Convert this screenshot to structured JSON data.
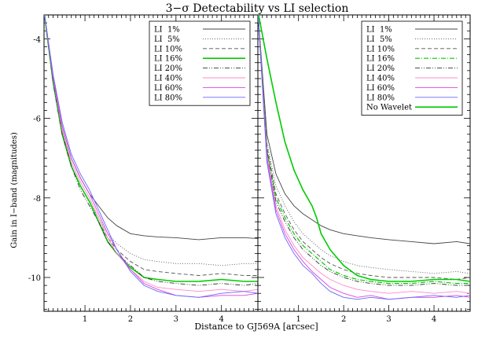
{
  "chart_data": {
    "type": "line",
    "title": "3−σ Detectability vs LI selection",
    "xlabel": "Distance to GJ569A [arcsec]",
    "ylabel": "Gain in I−band (magnitudes)",
    "xlim": [
      0.1,
      4.8
    ],
    "ylim": [
      -3.4,
      -10.85
    ],
    "x_ticks": [
      1,
      2,
      3,
      4
    ],
    "y_ticks": [
      -4,
      -6,
      -8,
      -10
    ],
    "grid": false,
    "legend_position": "top-right",
    "panels": [
      {
        "name": "left",
        "series": [
          {
            "name": "LI  1%",
            "color": "#444444",
            "dash": "",
            "width": 0.9,
            "x": [
              0.1,
              0.3,
              0.5,
              0.7,
              0.9,
              1.1,
              1.3,
              1.5,
              1.7,
              2.0,
              2.3,
              2.6,
              3.0,
              3.5,
              4.0,
              4.5,
              4.8
            ],
            "y": [
              -3.3,
              -5.0,
              -6.2,
              -7.0,
              -7.5,
              -7.9,
              -8.2,
              -8.5,
              -8.7,
              -8.9,
              -8.95,
              -8.98,
              -9.0,
              -9.05,
              -9.0,
              -9.0,
              -9.02
            ]
          },
          {
            "name": "LI  5%",
            "color": "#555555",
            "dash": "1,2",
            "width": 0.9,
            "x": [
              0.1,
              0.3,
              0.5,
              0.7,
              0.9,
              1.1,
              1.3,
              1.5,
              1.7,
              2.0,
              2.3,
              2.6,
              3.0,
              3.5,
              4.0,
              4.5,
              4.8
            ],
            "y": [
              -3.3,
              -5.1,
              -6.3,
              -7.2,
              -7.7,
              -8.1,
              -8.5,
              -8.9,
              -9.15,
              -9.4,
              -9.55,
              -9.6,
              -9.65,
              -9.65,
              -9.7,
              -9.65,
              -9.65
            ]
          },
          {
            "name": "LI 10%",
            "color": "#555555",
            "dash": "5,3",
            "width": 0.9,
            "x": [
              0.1,
              0.3,
              0.5,
              0.7,
              0.9,
              1.1,
              1.3,
              1.5,
              1.7,
              2.0,
              2.3,
              2.6,
              3.0,
              3.5,
              4.0,
              4.5,
              4.8
            ],
            "y": [
              -3.3,
              -5.1,
              -6.3,
              -7.2,
              -7.7,
              -8.1,
              -8.6,
              -9.0,
              -9.3,
              -9.6,
              -9.8,
              -9.85,
              -9.9,
              -9.95,
              -9.9,
              -9.95,
              -9.95
            ]
          },
          {
            "name": "LI 16%",
            "color": "#00cc00",
            "dash": "",
            "width": 1.6,
            "x": [
              0.1,
              0.3,
              0.5,
              0.7,
              0.9,
              1.1,
              1.3,
              1.5,
              1.7,
              2.0,
              2.3,
              2.6,
              3.0,
              3.5,
              4.0,
              4.5,
              4.8
            ],
            "y": [
              -3.3,
              -5.1,
              -6.4,
              -7.2,
              -7.7,
              -8.1,
              -8.6,
              -9.1,
              -9.4,
              -9.75,
              -10.0,
              -10.05,
              -10.1,
              -10.1,
              -10.05,
              -10.1,
              -10.1
            ]
          },
          {
            "name": "LI 20%",
            "color": "#333333",
            "dash": "6,2,1,2,1,2",
            "width": 0.9,
            "x": [
              0.1,
              0.3,
              0.5,
              0.7,
              0.9,
              1.1,
              1.3,
              1.5,
              1.7,
              2.0,
              2.3,
              2.6,
              3.0,
              3.5,
              4.0,
              4.5,
              4.8
            ],
            "y": [
              -3.3,
              -5.1,
              -6.4,
              -7.2,
              -7.8,
              -8.2,
              -8.6,
              -9.1,
              -9.4,
              -9.7,
              -10.0,
              -10.1,
              -10.15,
              -10.2,
              -10.15,
              -10.2,
              -10.15
            ]
          },
          {
            "name": "LI 40%",
            "color": "#ff88cc",
            "dash": "",
            "width": 0.9,
            "x": [
              0.1,
              0.3,
              0.5,
              0.7,
              0.9,
              1.1,
              1.3,
              1.5,
              1.7,
              2.0,
              2.3,
              2.6,
              3.0,
              3.5,
              4.0,
              4.5,
              4.8
            ],
            "y": [
              -3.3,
              -5.0,
              -6.3,
              -7.1,
              -7.6,
              -8.0,
              -8.5,
              -9.0,
              -9.4,
              -9.8,
              -10.1,
              -10.25,
              -10.3,
              -10.35,
              -10.3,
              -10.35,
              -10.3
            ]
          },
          {
            "name": "LI 60%",
            "color": "#dd44dd",
            "dash": "",
            "width": 0.9,
            "x": [
              0.1,
              0.3,
              0.5,
              0.7,
              0.9,
              1.1,
              1.3,
              1.5,
              1.7,
              2.0,
              2.3,
              2.6,
              3.0,
              3.5,
              4.0,
              4.5,
              4.8
            ],
            "y": [
              -3.3,
              -5.0,
              -6.2,
              -7.0,
              -7.5,
              -7.9,
              -8.4,
              -8.9,
              -9.3,
              -9.8,
              -10.15,
              -10.3,
              -10.45,
              -10.5,
              -10.45,
              -10.45,
              -10.4
            ]
          },
          {
            "name": "LI 80%",
            "color": "#6666ff",
            "dash": "",
            "width": 0.9,
            "x": [
              0.1,
              0.3,
              0.5,
              0.7,
              0.9,
              1.1,
              1.3,
              1.5,
              1.7,
              2.0,
              2.3,
              2.6,
              3.0,
              3.5,
              4.0,
              4.5,
              4.8
            ],
            "y": [
              -3.3,
              -4.9,
              -6.1,
              -6.9,
              -7.4,
              -7.8,
              -8.3,
              -8.8,
              -9.3,
              -9.85,
              -10.2,
              -10.35,
              -10.45,
              -10.5,
              -10.4,
              -10.35,
              -10.4
            ]
          }
        ]
      },
      {
        "name": "right",
        "series": [
          {
            "name": "LI  1%",
            "color": "#444444",
            "dash": "",
            "width": 0.9,
            "x": [
              0.1,
              0.3,
              0.5,
              0.7,
              0.9,
              1.1,
              1.3,
              1.5,
              1.7,
              2.0,
              2.3,
              2.6,
              3.0,
              3.5,
              4.0,
              4.5,
              4.8
            ],
            "y": [
              -3.3,
              -6.4,
              -7.4,
              -7.9,
              -8.2,
              -8.4,
              -8.55,
              -8.7,
              -8.8,
              -8.9,
              -8.95,
              -9.0,
              -9.05,
              -9.1,
              -9.15,
              -9.1,
              -9.15
            ]
          },
          {
            "name": "LI  5%",
            "color": "#555555",
            "dash": "1,2",
            "width": 0.9,
            "x": [
              0.1,
              0.3,
              0.5,
              0.7,
              0.9,
              1.1,
              1.3,
              1.5,
              1.7,
              2.0,
              2.3,
              2.6,
              3.0,
              3.5,
              4.0,
              4.5,
              4.8
            ],
            "y": [
              -3.3,
              -6.6,
              -7.7,
              -8.2,
              -8.6,
              -8.9,
              -9.1,
              -9.3,
              -9.45,
              -9.6,
              -9.7,
              -9.75,
              -9.8,
              -9.85,
              -9.9,
              -9.85,
              -9.9
            ]
          },
          {
            "name": "LI 10%",
            "color": "#555555",
            "dash": "5,3",
            "width": 0.9,
            "x": [
              0.1,
              0.3,
              0.5,
              0.7,
              0.9,
              1.1,
              1.3,
              1.5,
              1.7,
              2.0,
              2.3,
              2.6,
              3.0,
              3.5,
              4.0,
              4.5,
              4.8
            ],
            "y": [
              -3.3,
              -6.7,
              -7.9,
              -8.4,
              -8.8,
              -9.1,
              -9.3,
              -9.5,
              -9.65,
              -9.8,
              -9.9,
              -9.95,
              -10.0,
              -10.0,
              -10.0,
              -10.05,
              -10.0
            ]
          },
          {
            "name": "LI 16%",
            "color": "#00cc00",
            "dash": "6,2,1,2",
            "width": 1.2,
            "x": [
              0.1,
              0.3,
              0.5,
              0.7,
              0.9,
              1.1,
              1.3,
              1.5,
              1.7,
              2.0,
              2.3,
              2.6,
              3.0,
              3.5,
              4.0,
              4.5,
              4.8
            ],
            "y": [
              -3.3,
              -6.8,
              -8.0,
              -8.5,
              -8.9,
              -9.2,
              -9.4,
              -9.6,
              -9.8,
              -9.95,
              -10.05,
              -10.1,
              -10.15,
              -10.15,
              -10.1,
              -10.15,
              -10.15
            ]
          },
          {
            "name": "LI 20%",
            "color": "#333333",
            "dash": "6,2,1,2,1,2",
            "width": 0.9,
            "x": [
              0.1,
              0.3,
              0.5,
              0.7,
              0.9,
              1.1,
              1.3,
              1.5,
              1.7,
              2.0,
              2.3,
              2.6,
              3.0,
              3.5,
              4.0,
              4.5,
              4.8
            ],
            "y": [
              -3.3,
              -6.8,
              -8.1,
              -8.6,
              -9.0,
              -9.3,
              -9.5,
              -9.7,
              -9.85,
              -10.0,
              -10.1,
              -10.15,
              -10.2,
              -10.2,
              -10.15,
              -10.2,
              -10.2
            ]
          },
          {
            "name": "LI 40%",
            "color": "#ff88cc",
            "dash": "",
            "width": 0.9,
            "x": [
              0.1,
              0.3,
              0.5,
              0.7,
              0.9,
              1.1,
              1.3,
              1.5,
              1.7,
              2.0,
              2.3,
              2.6,
              3.0,
              3.5,
              4.0,
              4.5,
              4.8
            ],
            "y": [
              -3.3,
              -6.9,
              -8.2,
              -8.8,
              -9.2,
              -9.5,
              -9.7,
              -9.9,
              -10.05,
              -10.2,
              -10.3,
              -10.35,
              -10.4,
              -10.35,
              -10.4,
              -10.35,
              -10.4
            ]
          },
          {
            "name": "LI 60%",
            "color": "#dd44dd",
            "dash": "",
            "width": 0.9,
            "x": [
              0.1,
              0.3,
              0.5,
              0.7,
              0.9,
              1.1,
              1.3,
              1.5,
              1.7,
              2.0,
              2.3,
              2.6,
              3.0,
              3.5,
              4.0,
              4.5,
              4.8
            ],
            "y": [
              -3.3,
              -7.0,
              -8.3,
              -8.9,
              -9.3,
              -9.6,
              -9.85,
              -10.05,
              -10.25,
              -10.4,
              -10.5,
              -10.45,
              -10.55,
              -10.5,
              -10.5,
              -10.45,
              -10.5
            ]
          },
          {
            "name": "LI 80%",
            "color": "#6666ff",
            "dash": "",
            "width": 0.9,
            "x": [
              0.1,
              0.3,
              0.5,
              0.7,
              0.9,
              1.1,
              1.3,
              1.5,
              1.7,
              2.0,
              2.3,
              2.6,
              3.0,
              3.5,
              4.0,
              4.5,
              4.8
            ],
            "y": [
              -3.3,
              -7.1,
              -8.4,
              -9.0,
              -9.4,
              -9.7,
              -9.9,
              -10.15,
              -10.35,
              -10.5,
              -10.55,
              -10.5,
              -10.55,
              -10.5,
              -10.45,
              -10.5,
              -10.45
            ]
          },
          {
            "name": "No Wavelet",
            "color": "#00cc00",
            "dash": "",
            "width": 1.6,
            "x": [
              0.1,
              0.3,
              0.5,
              0.7,
              0.9,
              1.1,
              1.3,
              1.4,
              1.5,
              1.7,
              2.0,
              2.3,
              2.6,
              3.0,
              3.5,
              4.0,
              4.5,
              4.8
            ],
            "y": [
              -3.3,
              -4.5,
              -5.6,
              -6.6,
              -7.3,
              -7.8,
              -8.2,
              -8.5,
              -8.9,
              -9.3,
              -9.7,
              -9.95,
              -10.05,
              -10.1,
              -10.1,
              -10.05,
              -10.05,
              -10.1
            ]
          }
        ]
      }
    ]
  }
}
